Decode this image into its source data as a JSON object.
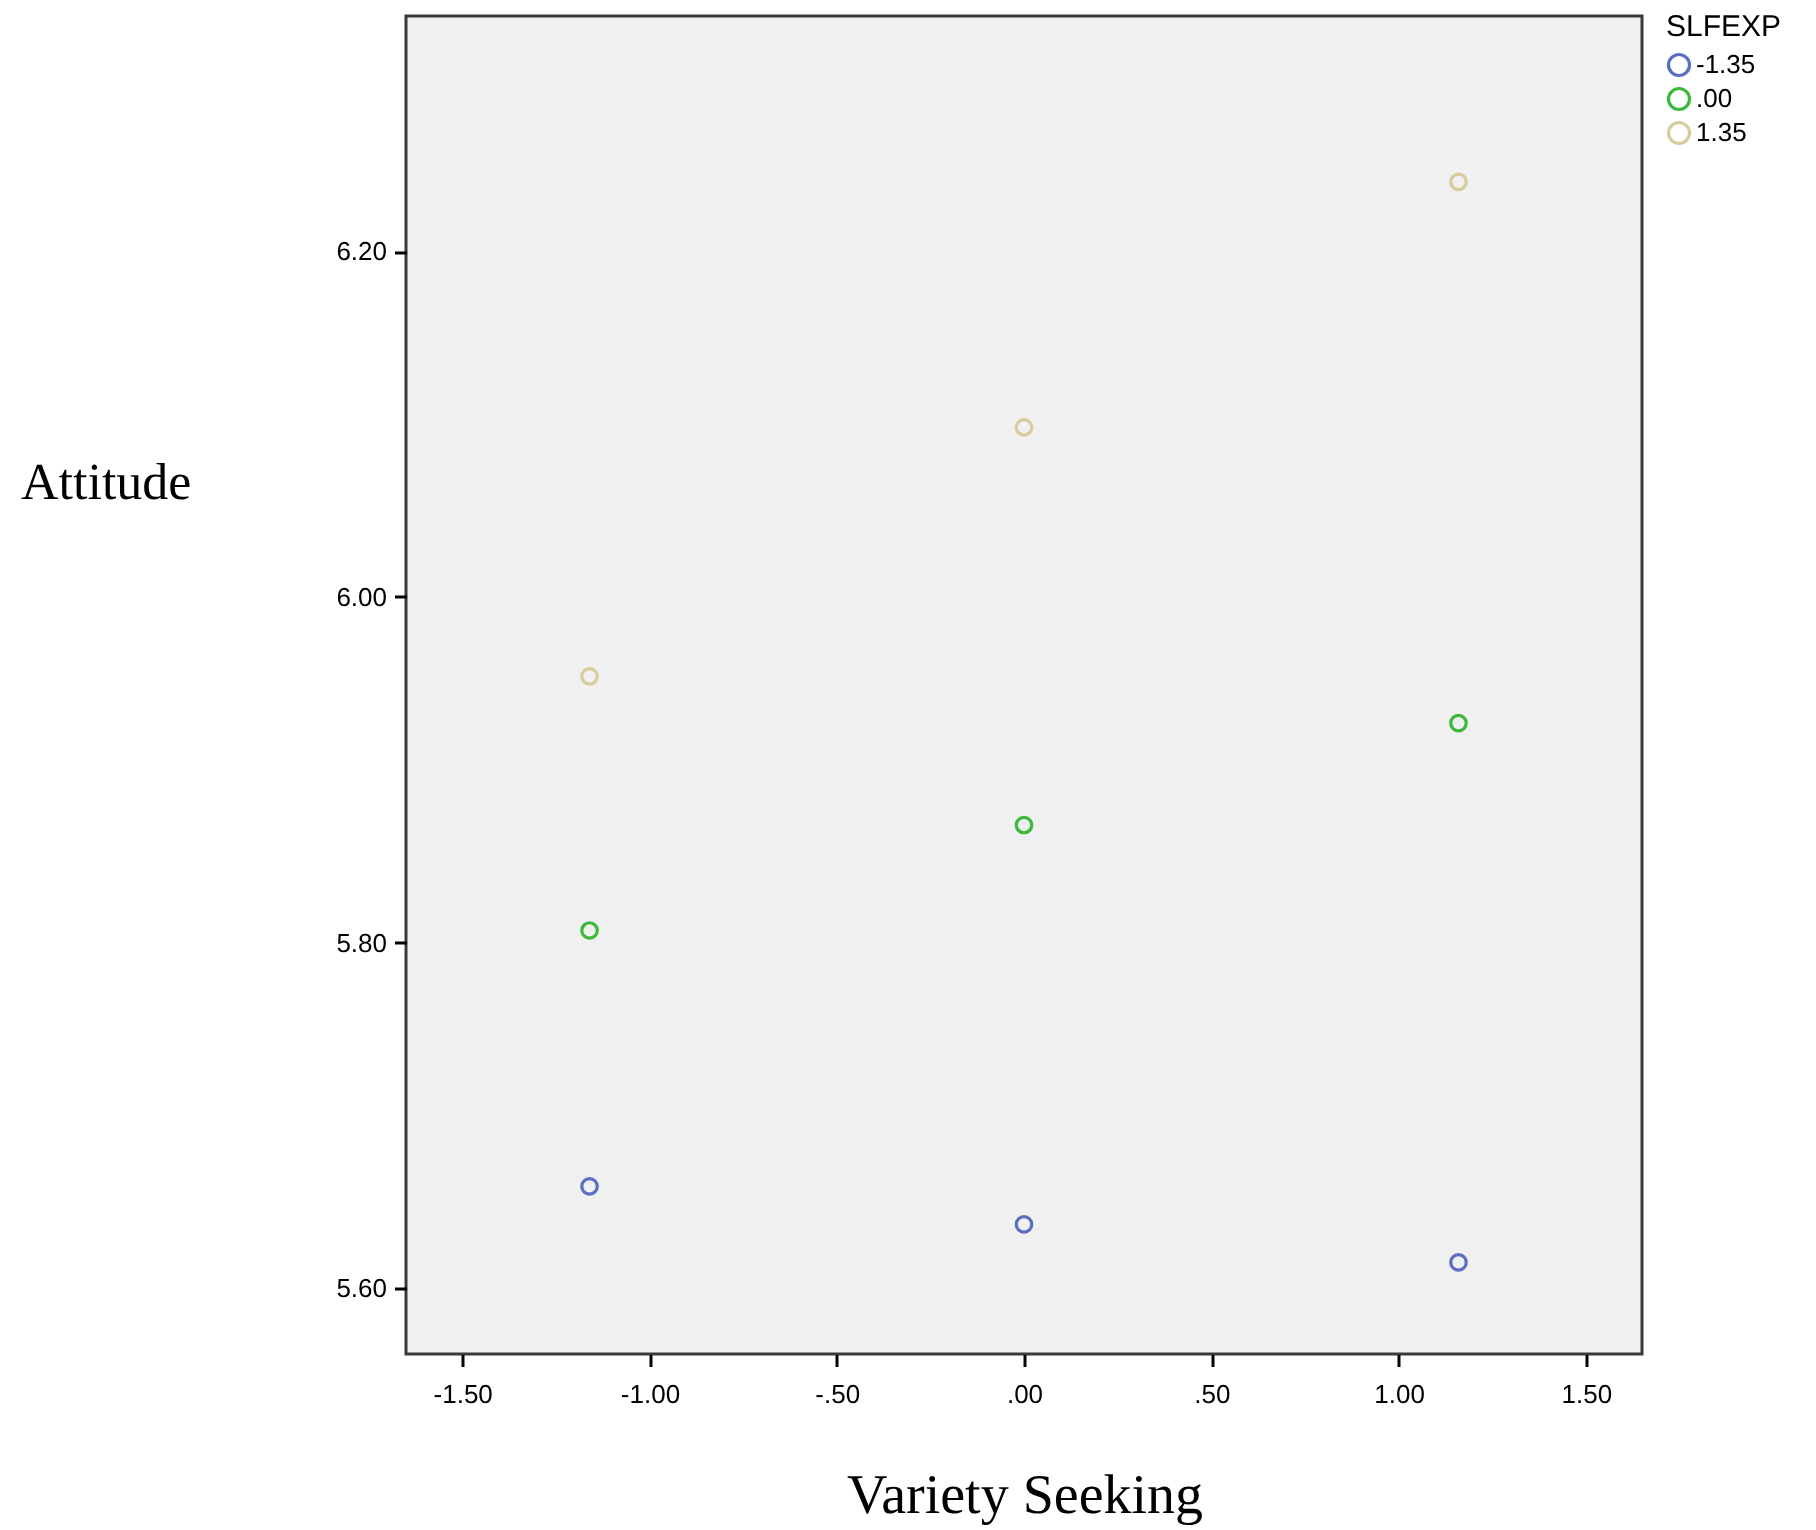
{
  "chart_data": {
    "type": "scatter",
    "xlabel": "Variety Seeking",
    "ylabel": "Attitude",
    "legend_title": "SLFEXP",
    "legend": "top right",
    "marker": "circle",
    "grid": false,
    "x": [
      -1.16,
      0,
      1.16
    ],
    "series": [
      {
        "name": "-1.35",
        "color": "#5a6fc0",
        "values": [
          5.659,
          5.637,
          5.615
        ]
      },
      {
        "name": ".00",
        "color": "#3cb83c",
        "values": [
          5.807,
          5.868,
          5.927
        ]
      },
      {
        "name": "1.35",
        "color": "#d6cc9c",
        "values": [
          5.954,
          6.098,
          6.24
        ]
      }
    ],
    "xlim": [
      -1.65,
      1.65
    ],
    "xticks": [
      {
        "value": -1.5,
        "label": "-1.50"
      },
      {
        "value": -1,
        "label": "-1.00"
      },
      {
        "value": -0.5,
        "label": "-.50"
      },
      {
        "value": 0,
        "label": ".00"
      },
      {
        "value": 0.5,
        "label": ".50"
      },
      {
        "value": 1,
        "label": "1.00"
      },
      {
        "value": 1.5,
        "label": "1.50"
      }
    ],
    "ylim": [
      5.562,
      6.336
    ],
    "yticks": [
      {
        "value": 5.6,
        "label": "5.60"
      },
      {
        "value": 5.8,
        "label": "5.80"
      },
      {
        "value": 6,
        "label": "6.00"
      },
      {
        "value": 6.2,
        "label": "6.20"
      }
    ]
  }
}
